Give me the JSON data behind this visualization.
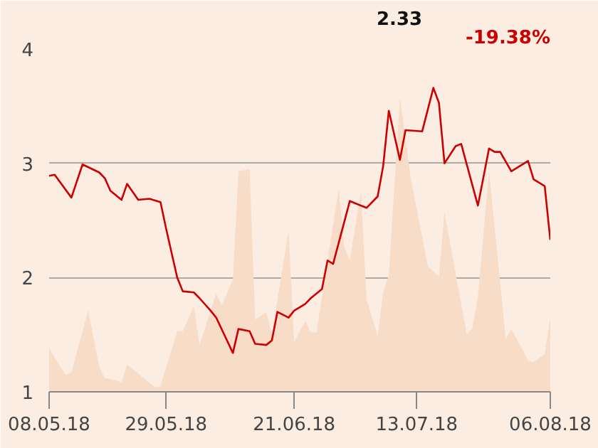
{
  "chart_data": {
    "type": "line",
    "annotations": [
      "2.33",
      "-19.38%"
    ],
    "xlim": [
      "2018-05-08",
      "2018-08-06"
    ],
    "xticks": [
      {
        "value": "2018-05-08",
        "label": "08.05.18"
      },
      {
        "value": "2018-05-29",
        "label": "29.05.18"
      },
      {
        "value": "2018-06-21",
        "label": "21.06.18"
      },
      {
        "value": "2018-07-13",
        "label": "13.07.18"
      },
      {
        "value": "2018-08-06",
        "label": "06.08.18"
      }
    ],
    "ylim": [
      1,
      4
    ],
    "yticks": [
      1,
      2,
      3,
      4
    ],
    "grid": "y",
    "series": [
      {
        "type": "area",
        "color": "#f7dcc8",
        "x": [
          "2018-05-08",
          "2018-05-10",
          "2018-05-11",
          "2018-05-12",
          "2018-05-15",
          "2018-05-17",
          "2018-05-18",
          "2018-05-20",
          "2018-05-21",
          "2018-05-22",
          "2018-05-25",
          "2018-05-27",
          "2018-05-28",
          "2018-05-31",
          "2018-06-01",
          "2018-06-03",
          "2018-06-04",
          "2018-06-07",
          "2018-06-08",
          "2018-06-10",
          "2018-06-11",
          "2018-06-13",
          "2018-06-14",
          "2018-06-16",
          "2018-06-17",
          "2018-06-20",
          "2018-06-21",
          "2018-06-23",
          "2018-06-24",
          "2018-06-25",
          "2018-06-29",
          "2018-06-30",
          "2018-07-01",
          "2018-07-03",
          "2018-07-04",
          "2018-07-06",
          "2018-07-07",
          "2018-07-08",
          "2018-07-10",
          "2018-07-12",
          "2018-07-15",
          "2018-07-17",
          "2018-07-18",
          "2018-07-21",
          "2018-07-22",
          "2018-07-23",
          "2018-07-24",
          "2018-07-26",
          "2018-07-29",
          "2018-07-30",
          "2018-08-01",
          "2018-08-02",
          "2018-08-03",
          "2018-08-05",
          "2018-08-06"
        ],
        "values": [
          1.38,
          1.22,
          1.15,
          1.17,
          1.71,
          1.22,
          1.12,
          1.1,
          1.08,
          1.24,
          1.12,
          1.04,
          1.05,
          1.53,
          1.53,
          1.75,
          1.41,
          1.86,
          1.76,
          1.98,
          2.93,
          2.95,
          1.63,
          1.7,
          1.5,
          2.41,
          1.44,
          1.62,
          1.52,
          1.52,
          2.78,
          2.27,
          2.15,
          2.75,
          1.81,
          1.49,
          1.87,
          2.02,
          3.57,
          2.85,
          2.1,
          2.01,
          2.57,
          1.77,
          1.5,
          1.56,
          1.83,
          2.93,
          1.46,
          1.55,
          1.37,
          1.27,
          1.26,
          1.33,
          1.65
        ]
      },
      {
        "color": "#cc0000",
        "x": [
          "2018-05-08",
          "2018-05-09",
          "2018-05-12",
          "2018-05-14",
          "2018-05-17",
          "2018-05-18",
          "2018-05-19",
          "2018-05-21",
          "2018-05-22",
          "2018-05-24",
          "2018-05-26",
          "2018-05-28",
          "2018-05-29",
          "2018-05-31",
          "2018-06-01",
          "2018-06-03",
          "2018-06-04",
          "2018-06-06",
          "2018-06-07",
          "2018-06-10",
          "2018-06-11",
          "2018-06-13",
          "2018-06-14",
          "2018-06-16",
          "2018-06-17",
          "2018-06-18",
          "2018-06-20",
          "2018-06-21",
          "2018-06-23",
          "2018-06-24",
          "2018-06-26",
          "2018-06-27",
          "2018-06-28",
          "2018-07-01",
          "2018-07-04",
          "2018-07-06",
          "2018-07-07",
          "2018-07-08",
          "2018-07-10",
          "2018-07-11",
          "2018-07-14",
          "2018-07-16",
          "2018-07-17",
          "2018-07-18",
          "2018-07-20",
          "2018-07-21",
          "2018-07-24",
          "2018-07-26",
          "2018-07-27",
          "2018-07-28",
          "2018-07-30",
          "2018-08-02",
          "2018-08-03",
          "2018-08-05",
          "2018-08-06"
        ],
        "values": [
          2.89,
          2.9,
          2.7,
          2.99,
          2.92,
          2.87,
          2.76,
          2.68,
          2.82,
          2.68,
          2.69,
          2.66,
          2.43,
          2.0,
          1.88,
          1.87,
          1.82,
          1.71,
          1.65,
          1.34,
          1.55,
          1.53,
          1.42,
          1.41,
          1.45,
          1.7,
          1.65,
          1.71,
          1.77,
          1.82,
          1.9,
          2.15,
          2.12,
          2.67,
          2.61,
          2.71,
          2.98,
          3.46,
          3.03,
          3.29,
          3.28,
          3.66,
          3.53,
          3.0,
          3.15,
          3.17,
          2.63,
          3.13,
          3.1,
          3.1,
          2.93,
          3.02,
          2.86,
          2.8,
          2.33
        ]
      }
    ]
  }
}
